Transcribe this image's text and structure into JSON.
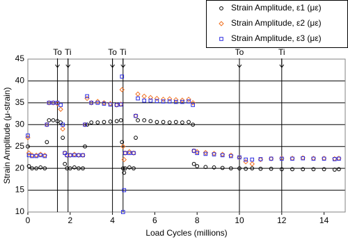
{
  "chart_data": {
    "type": "scatter",
    "x_label": "Load Cycles (millions)",
    "y_label": "Strain Amplitude (μ-strain)",
    "xlim": [
      0,
      15
    ],
    "xticks": [
      0,
      2,
      4,
      6,
      8,
      10,
      12,
      14
    ],
    "ylim": [
      10,
      45
    ],
    "yticks": [
      10,
      15,
      20,
      25,
      30,
      35,
      40,
      45
    ],
    "grid": true,
    "legend": "top-right",
    "markers": [
      {
        "label": "To",
        "x": 1.4
      },
      {
        "label": "Ti",
        "x": 1.9
      },
      {
        "label": "To",
        "x": 4.0
      },
      {
        "label": "Ti",
        "x": 4.5
      },
      {
        "label": "To",
        "x": 10
      },
      {
        "label": "Ti",
        "x": 12
      }
    ],
    "x": [
      0,
      0.05,
      0.2,
      0.4,
      0.6,
      0.8,
      0.9,
      1.0,
      1.2,
      1.4,
      1.55,
      1.65,
      1.75,
      1.85,
      2.0,
      2.2,
      2.4,
      2.6,
      2.7,
      2.8,
      3.0,
      3.3,
      3.6,
      3.9,
      4.2,
      4.4,
      4.45,
      4.5,
      4.55,
      4.6,
      4.8,
      5.0,
      5.1,
      5.2,
      5.5,
      5.8,
      6.1,
      6.4,
      6.7,
      7.0,
      7.3,
      7.6,
      7.8,
      7.85,
      8.0,
      8.4,
      8.8,
      9.2,
      9.6,
      10.0,
      10.3,
      10.6,
      11.0,
      11.5,
      12.0,
      12.5,
      13.0,
      13.5,
      14.0,
      14.5,
      14.7
    ],
    "series": [
      {
        "name": "Strain Amplitude, ε1 (με)",
        "color": "#000000",
        "marker": "circle",
        "values": [
          25,
          20.5,
          20,
          20,
          20.2,
          20,
          26,
          31,
          31,
          30.8,
          30.5,
          27,
          21,
          20,
          20,
          20.2,
          20,
          20,
          25,
          30,
          30.5,
          30.5,
          30.6,
          30.7,
          30.8,
          31,
          26,
          20,
          19,
          20,
          20.2,
          20,
          27,
          31,
          31,
          30.8,
          30.6,
          30.6,
          30.5,
          30.6,
          30.5,
          30.6,
          30,
          21,
          20.5,
          20.3,
          20.2,
          20.1,
          20,
          20,
          19.9,
          20,
          19.9,
          19.9,
          19.8,
          19.8,
          19.8,
          19.8,
          19.8,
          19.7,
          19.8
        ]
      },
      {
        "name": "Strain Amplitude, ε2 (με)",
        "color": "#f07020",
        "marker": "diamond",
        "values": [
          27,
          23.5,
          23,
          23,
          23.2,
          23,
          30,
          35,
          35,
          34.8,
          33.5,
          29,
          23.5,
          23,
          23,
          23.2,
          23,
          23,
          30,
          36,
          35,
          35.3,
          35,
          34.8,
          34.5,
          34.7,
          38,
          25,
          22,
          23.5,
          23.8,
          23.5,
          32,
          37,
          36.5,
          36.2,
          36,
          35.8,
          35.9,
          35.7,
          35.6,
          35.8,
          35,
          24,
          23.8,
          23.6,
          23.4,
          23.2,
          23,
          22.5,
          21.5,
          21,
          22,
          22.2,
          22.3,
          22.3,
          22.4,
          22.3,
          22.3,
          22.2,
          22.3
        ]
      },
      {
        "name": "Strain Amplitude, ε3 (με)",
        "color": "#2828e0",
        "marker": "square",
        "values": [
          27.5,
          23,
          22.8,
          22.8,
          23,
          22.8,
          30,
          35,
          35,
          35,
          34.5,
          30,
          23.5,
          23,
          23,
          23,
          23,
          23,
          30,
          36.5,
          35,
          35,
          34.8,
          34.6,
          34.5,
          34.6,
          41,
          10,
          15,
          23.5,
          23.5,
          23.5,
          32,
          36,
          35.5,
          35.5,
          35.4,
          35.3,
          35.3,
          35.2,
          35.2,
          35.3,
          34.5,
          24,
          23.5,
          23.3,
          23.2,
          23,
          22.8,
          22.5,
          22,
          22,
          22.1,
          22.2,
          22.2,
          22.2,
          22.3,
          22.2,
          22.2,
          22.1,
          22.2
        ]
      }
    ]
  }
}
